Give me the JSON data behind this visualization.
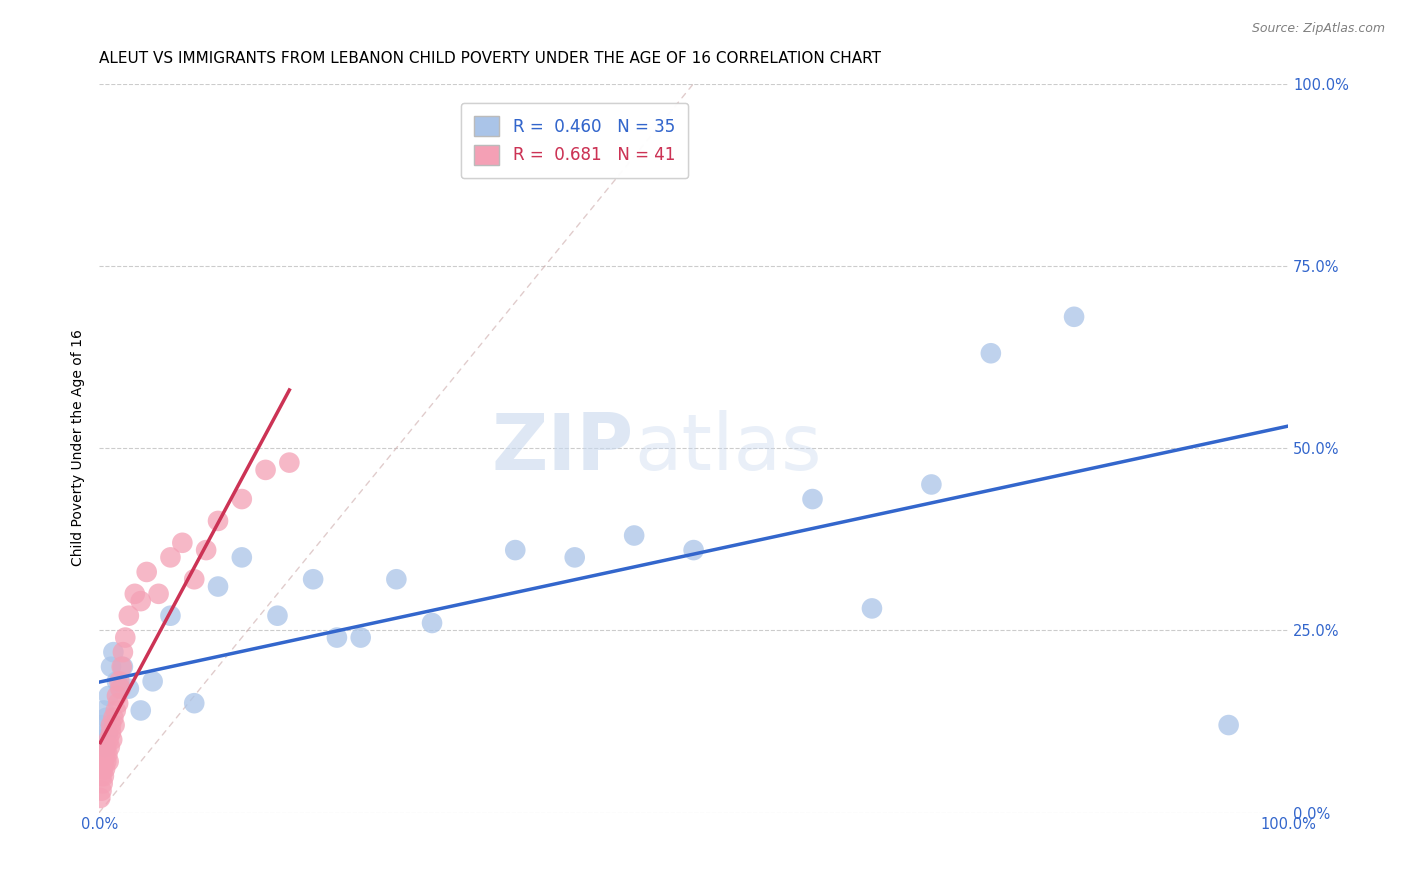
{
  "title": "ALEUT VS IMMIGRANTS FROM LEBANON CHILD POVERTY UNDER THE AGE OF 16 CORRELATION CHART",
  "source": "Source: ZipAtlas.com",
  "ylabel": "Child Poverty Under the Age of 16",
  "xlim": [
    0,
    1
  ],
  "ylim": [
    0,
    1
  ],
  "aleut_R": 0.46,
  "aleut_N": 35,
  "lebanon_R": 0.681,
  "lebanon_N": 41,
  "aleut_color": "#aac4e8",
  "lebanon_color": "#f4a0b5",
  "aleut_line_color": "#3366cc",
  "lebanon_line_color": "#cc3355",
  "aleut_x": [
    0.002,
    0.003,
    0.004,
    0.005,
    0.006,
    0.007,
    0.008,
    0.01,
    0.012,
    0.015,
    0.018,
    0.02,
    0.025,
    0.035,
    0.045,
    0.06,
    0.08,
    0.1,
    0.12,
    0.15,
    0.18,
    0.2,
    0.22,
    0.25,
    0.28,
    0.35,
    0.4,
    0.45,
    0.5,
    0.6,
    0.65,
    0.7,
    0.75,
    0.82,
    0.95
  ],
  "aleut_y": [
    0.12,
    0.1,
    0.14,
    0.09,
    0.13,
    0.11,
    0.16,
    0.2,
    0.22,
    0.18,
    0.17,
    0.2,
    0.17,
    0.14,
    0.18,
    0.27,
    0.15,
    0.31,
    0.35,
    0.27,
    0.32,
    0.24,
    0.24,
    0.32,
    0.26,
    0.36,
    0.35,
    0.38,
    0.36,
    0.43,
    0.28,
    0.45,
    0.63,
    0.68,
    0.12
  ],
  "lebanon_x": [
    0.001,
    0.002,
    0.002,
    0.003,
    0.003,
    0.004,
    0.004,
    0.005,
    0.005,
    0.006,
    0.006,
    0.007,
    0.008,
    0.008,
    0.009,
    0.01,
    0.01,
    0.011,
    0.012,
    0.013,
    0.014,
    0.015,
    0.016,
    0.017,
    0.018,
    0.019,
    0.02,
    0.022,
    0.025,
    0.03,
    0.035,
    0.04,
    0.05,
    0.06,
    0.07,
    0.08,
    0.09,
    0.1,
    0.12,
    0.14,
    0.16
  ],
  "lebanon_y": [
    0.02,
    0.03,
    0.05,
    0.04,
    0.06,
    0.05,
    0.07,
    0.06,
    0.08,
    0.07,
    0.09,
    0.08,
    0.1,
    0.07,
    0.09,
    0.11,
    0.12,
    0.1,
    0.13,
    0.12,
    0.14,
    0.16,
    0.15,
    0.18,
    0.17,
    0.2,
    0.22,
    0.24,
    0.27,
    0.3,
    0.29,
    0.33,
    0.3,
    0.35,
    0.37,
    0.32,
    0.36,
    0.4,
    0.43,
    0.47,
    0.48
  ],
  "watermark_zip": "ZIP",
  "watermark_atlas": "atlas",
  "grid_color": "#cccccc",
  "background_color": "#ffffff",
  "title_fontsize": 11,
  "label_fontsize": 10,
  "tick_fontsize": 10.5
}
